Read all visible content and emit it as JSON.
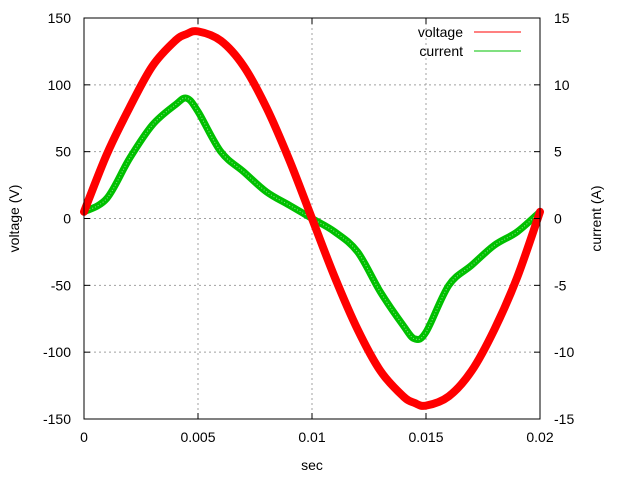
{
  "chart_data": {
    "type": "line",
    "title": "",
    "xlabel": "sec",
    "ylabel": "voltage (V)",
    "y2label": "current (A)",
    "xlim": [
      0,
      0.02
    ],
    "ylim": [
      -150,
      150
    ],
    "y2lim": [
      -15,
      15
    ],
    "x_ticks": [
      "0",
      "0.005",
      "0.01",
      "0.015",
      "0.02"
    ],
    "y_ticks": [
      "-150",
      "-100",
      "-50",
      "0",
      "50",
      "100",
      "150"
    ],
    "y2_ticks": [
      "-15",
      "-10",
      "-5",
      "0",
      "5",
      "10",
      "15"
    ],
    "grid": true,
    "legend_position": "top-right",
    "x": [
      0,
      0.001,
      0.002,
      0.003,
      0.004,
      0.0045,
      0.005,
      0.006,
      0.007,
      0.008,
      0.009,
      0.01,
      0.011,
      0.012,
      0.013,
      0.014,
      0.0145,
      0.015,
      0.016,
      0.017,
      0.018,
      0.019,
      0.02
    ],
    "series": [
      {
        "name": "voltage",
        "axis": "left",
        "color": "#ff0000",
        "values": [
          5,
          48,
          83,
          114,
          133,
          138,
          140,
          133,
          114,
          83,
          44,
          0,
          -44,
          -83,
          -114,
          -133,
          -138,
          -140,
          -133,
          -114,
          -83,
          -44,
          5
        ]
      },
      {
        "name": "current",
        "axis": "right",
        "color": "#00c000",
        "values": [
          0.5,
          1.5,
          4.5,
          7,
          8.5,
          9,
          8,
          5,
          3.5,
          2,
          1,
          0,
          -1,
          -2.5,
          -5.5,
          -8,
          -9,
          -8.5,
          -5,
          -3.5,
          -2,
          -1,
          0.5
        ]
      }
    ]
  }
}
